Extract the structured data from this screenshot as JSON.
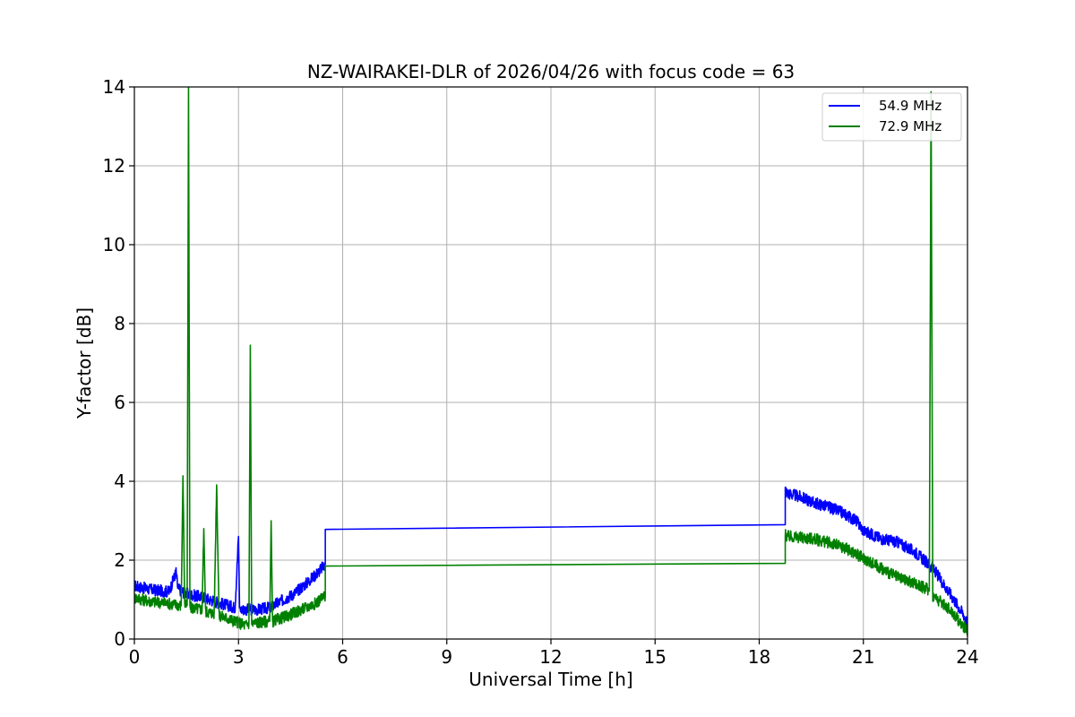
{
  "chart_data": {
    "type": "line",
    "title": "NZ-WAIRAKEI-DLR of 2026/04/26 with focus code = 63",
    "xlabel": "Universal Time [h]",
    "ylabel": "Y-factor [dB]",
    "xlim": [
      0,
      24
    ],
    "ylim": [
      0,
      14
    ],
    "xticks": [
      0,
      3,
      6,
      9,
      12,
      15,
      18,
      21,
      24
    ],
    "xtick_labels": [
      "0",
      "3",
      "6",
      "9",
      "12",
      "15",
      "18",
      "21",
      "24"
    ],
    "yticks": [
      0,
      2,
      4,
      6,
      8,
      10,
      12,
      14
    ],
    "ytick_labels": [
      "0",
      "2",
      "4",
      "6",
      "8",
      "10",
      "12",
      "14"
    ],
    "grid": true,
    "legend_position": "top-right",
    "series": [
      {
        "name": "54.9 MHz",
        "color": "#0000ff",
        "x": [
          0,
          0.5,
          1.0,
          1.2,
          1.25,
          1.3,
          1.5,
          2.0,
          2.5,
          2.9,
          3.0,
          3.03,
          3.06,
          3.3,
          3.6,
          3.9,
          4.2,
          4.6,
          5.0,
          5.3,
          5.5,
          5.5,
          18.75,
          18.75,
          18.8,
          19.2,
          19.6,
          20.0,
          20.4,
          20.8,
          21.0,
          21.5,
          22.0,
          22.5,
          23.0,
          23.5,
          23.9,
          24.0
        ],
        "y": [
          1.35,
          1.25,
          1.2,
          1.7,
          1.3,
          1.25,
          1.15,
          1.05,
          0.9,
          0.8,
          2.6,
          0.8,
          0.75,
          0.75,
          0.75,
          0.8,
          0.95,
          1.15,
          1.45,
          1.7,
          1.9,
          2.78,
          2.9,
          3.8,
          3.7,
          3.6,
          3.45,
          3.35,
          3.2,
          3.0,
          2.75,
          2.55,
          2.45,
          2.2,
          1.8,
          1.15,
          0.6,
          0.4
        ]
      },
      {
        "name": "72.9 MHz",
        "color": "#008000",
        "x": [
          0,
          0.5,
          1.0,
          1.35,
          1.4,
          1.45,
          1.52,
          1.56,
          1.6,
          1.95,
          2.0,
          2.05,
          2.3,
          2.37,
          2.44,
          3.2,
          3.3,
          3.34,
          3.38,
          3.8,
          3.9,
          3.94,
          3.98,
          4.3,
          4.7,
          5.2,
          5.5,
          5.5,
          18.75,
          18.75,
          18.8,
          19.5,
          20.0,
          20.5,
          21.0,
          21.5,
          22.0,
          22.5,
          22.9,
          22.95,
          23.0,
          23.5,
          23.9,
          24.0
        ],
        "y": [
          1.05,
          0.95,
          0.9,
          0.85,
          4.2,
          0.85,
          0.85,
          14,
          0.8,
          0.75,
          2.8,
          0.7,
          0.65,
          3.95,
          0.6,
          0.35,
          0.4,
          7.45,
          0.4,
          0.45,
          0.45,
          3.0,
          0.45,
          0.55,
          0.7,
          0.9,
          1.1,
          1.85,
          1.92,
          2.65,
          2.6,
          2.55,
          2.45,
          2.3,
          2.05,
          1.8,
          1.55,
          1.4,
          1.25,
          14,
          1.1,
          0.75,
          0.3,
          0.2
        ]
      }
    ]
  }
}
